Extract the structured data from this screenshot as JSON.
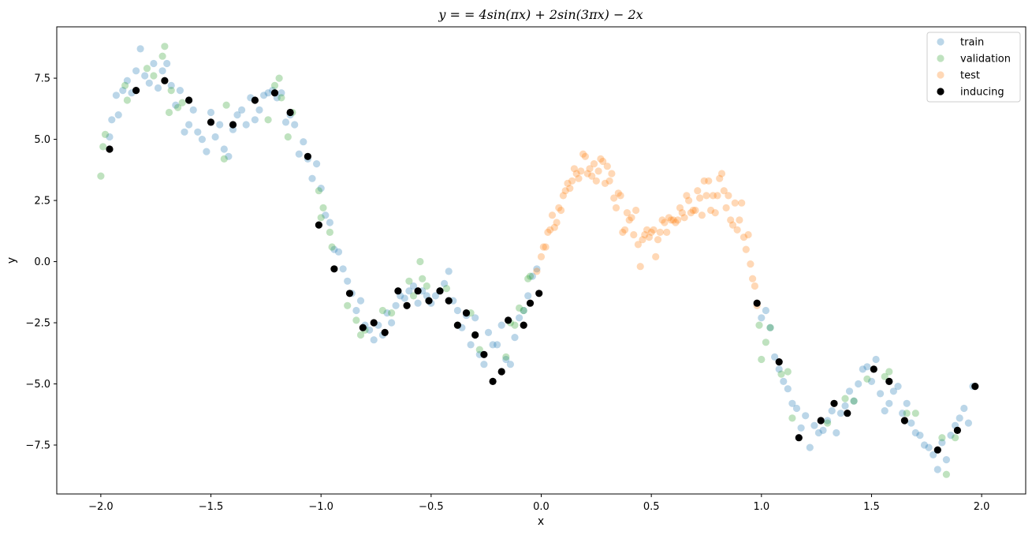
{
  "chart_data": {
    "type": "scatter",
    "title": "y = = 4sin(πx) + 2sin(3πx) − 2x",
    "xlabel": "x",
    "ylabel": "y",
    "xlim": [
      -2.2,
      2.2
    ],
    "ylim": [
      -9.5,
      9.6
    ],
    "xticks": [
      -2.0,
      -1.5,
      -1.0,
      -0.5,
      0.0,
      0.5,
      1.0,
      1.5,
      2.0
    ],
    "xtick_labels": [
      "−2.0",
      "−1.5",
      "−1.0",
      "−0.5",
      "0.0",
      "0.5",
      "1.0",
      "1.5",
      "2.0"
    ],
    "yticks": [
      -7.5,
      -5.0,
      -2.5,
      0.0,
      2.5,
      5.0,
      7.5
    ],
    "ytick_labels": [
      "−7.5",
      "−5.0",
      "−2.5",
      "0.0",
      "2.5",
      "5.0",
      "7.5"
    ],
    "grid": false,
    "legend_position": "top-right",
    "series": [
      {
        "name": "train",
        "color": "#1f77b4",
        "alpha": 0.3,
        "x": [
          -1.96,
          -1.95,
          -1.93,
          -1.92,
          -1.9,
          -1.88,
          -1.86,
          -1.84,
          -1.82,
          -1.8,
          -1.78,
          -1.76,
          -1.74,
          -1.72,
          -1.7,
          -1.68,
          -1.66,
          -1.64,
          -1.62,
          -1.6,
          -1.58,
          -1.56,
          -1.54,
          -1.52,
          -1.5,
          -1.48,
          -1.46,
          -1.44,
          -1.42,
          -1.4,
          -1.38,
          -1.36,
          -1.34,
          -1.32,
          -1.3,
          -1.28,
          -1.26,
          -1.24,
          -1.22,
          -1.2,
          -1.18,
          -1.16,
          -1.14,
          -1.12,
          -1.1,
          -1.08,
          -1.06,
          -1.04,
          -1.02,
          -1.0,
          -0.98,
          -0.96,
          -0.94,
          -0.92,
          -0.9,
          -0.88,
          -0.86,
          -0.84,
          -0.82,
          -0.8,
          -0.78,
          -0.76,
          -0.74,
          -0.72,
          -0.7,
          -0.68,
          -0.66,
          -0.64,
          -0.62,
          -0.6,
          -0.58,
          -0.56,
          -0.54,
          -0.52,
          -0.5,
          -0.48,
          -0.46,
          -0.44,
          -0.42,
          -0.4,
          -0.38,
          -0.36,
          -0.34,
          -0.32,
          -0.3,
          -0.28,
          -0.26,
          -0.24,
          -0.22,
          -0.2,
          -0.18,
          -0.16,
          -0.14,
          -0.12,
          -0.1,
          -0.08,
          -0.06,
          -0.04,
          -0.02,
          1.0,
          1.02,
          1.04,
          1.06,
          1.08,
          1.1,
          1.12,
          1.14,
          1.16,
          1.18,
          1.2,
          1.22,
          1.24,
          1.26,
          1.28,
          1.3,
          1.32,
          1.34,
          1.36,
          1.38,
          1.4,
          1.42,
          1.44,
          1.46,
          1.48,
          1.5,
          1.52,
          1.54,
          1.56,
          1.58,
          1.6,
          1.62,
          1.64,
          1.66,
          1.68,
          1.7,
          1.72,
          1.74,
          1.76,
          1.78,
          1.8,
          1.82,
          1.84,
          1.86,
          1.88,
          1.9,
          1.92,
          1.94,
          1.96
        ],
        "y": [
          5.1,
          5.8,
          6.8,
          6.0,
          7.0,
          7.4,
          6.9,
          7.8,
          8.7,
          7.6,
          7.3,
          8.1,
          7.1,
          7.8,
          8.1,
          7.2,
          6.4,
          7.0,
          5.3,
          5.6,
          6.2,
          5.3,
          5.0,
          4.5,
          6.1,
          5.1,
          5.6,
          4.6,
          4.3,
          5.4,
          6.0,
          6.2,
          5.6,
          6.7,
          5.8,
          6.2,
          6.8,
          6.9,
          7.0,
          6.7,
          6.9,
          5.7,
          6.0,
          5.6,
          4.4,
          4.9,
          4.2,
          3.4,
          4.0,
          3.0,
          1.9,
          1.6,
          0.5,
          0.4,
          -0.3,
          -0.8,
          -1.3,
          -2.0,
          -1.6,
          -2.6,
          -2.8,
          -3.2,
          -2.6,
          -3.0,
          -2.1,
          -2.5,
          -1.8,
          -1.4,
          -1.5,
          -1.2,
          -1.0,
          -1.7,
          -1.2,
          -1.4,
          -1.7,
          -1.4,
          -1.2,
          -0.9,
          -0.4,
          -1.6,
          -2.0,
          -2.7,
          -2.2,
          -3.4,
          -2.3,
          -3.8,
          -4.2,
          -2.9,
          -3.4,
          -3.4,
          -2.6,
          -4.0,
          -4.2,
          -3.1,
          -2.3,
          -2.0,
          -1.4,
          -0.6,
          -0.3,
          -2.3,
          -2.0,
          -2.7,
          -3.9,
          -4.4,
          -4.9,
          -5.2,
          -5.8,
          -6.0,
          -6.8,
          -6.3,
          -7.6,
          -6.7,
          -7.0,
          -6.9,
          -6.5,
          -6.1,
          -7.0,
          -6.2,
          -5.9,
          -5.3,
          -5.7,
          -5.0,
          -4.4,
          -4.3,
          -4.9,
          -4.0,
          -5.4,
          -6.1,
          -5.8,
          -5.3,
          -5.1,
          -6.2,
          -5.8,
          -6.6,
          -7.0,
          -7.1,
          -7.5,
          -7.6,
          -7.9,
          -8.5,
          -7.4,
          -8.1,
          -7.1,
          -6.7,
          -6.4,
          -6.0,
          -6.6,
          -5.1
        ]
      },
      {
        "name": "validation",
        "color": "#2ca02c",
        "alpha": 0.3,
        "x": [
          -2.0,
          -1.99,
          -1.98,
          -1.89,
          -1.88,
          -1.79,
          -1.76,
          -1.72,
          -1.71,
          -1.69,
          -1.68,
          -1.65,
          -1.63,
          -1.44,
          -1.43,
          -1.24,
          -1.21,
          -1.19,
          -1.18,
          -1.15,
          -1.13,
          -1.01,
          -1.0,
          -0.99,
          -0.96,
          -0.95,
          -0.88,
          -0.84,
          -0.82,
          -0.8,
          -0.72,
          -0.68,
          -0.6,
          -0.58,
          -0.55,
          -0.54,
          -0.52,
          -0.43,
          -0.32,
          -0.3,
          -0.28,
          -0.16,
          -0.14,
          -0.12,
          -0.1,
          -0.08,
          -0.06,
          -0.05,
          0.99,
          1.0,
          1.02,
          1.04,
          1.09,
          1.12,
          1.14,
          1.3,
          1.38,
          1.42,
          1.48,
          1.56,
          1.58,
          1.66,
          1.7,
          1.82,
          1.84,
          1.88
        ],
        "y": [
          3.5,
          4.7,
          5.2,
          7.2,
          6.6,
          7.9,
          7.6,
          8.4,
          8.8,
          6.1,
          7.0,
          6.3,
          6.5,
          4.2,
          6.4,
          5.8,
          7.2,
          7.5,
          6.7,
          5.1,
          6.1,
          2.9,
          1.8,
          2.2,
          1.2,
          0.6,
          -1.8,
          -2.4,
          -3.0,
          -2.8,
          -2.0,
          -2.1,
          -0.8,
          -1.4,
          0.0,
          -0.7,
          -1.0,
          -1.1,
          -2.1,
          -3.0,
          -3.6,
          -3.9,
          -2.5,
          -2.6,
          -1.9,
          -2.0,
          -0.7,
          -0.6,
          -2.6,
          -4.0,
          -3.3,
          -2.7,
          -4.6,
          -4.5,
          -6.4,
          -6.6,
          -5.6,
          -5.7,
          -4.8,
          -4.7,
          -4.5,
          -6.2,
          -6.2,
          -7.2,
          -8.7,
          -7.2
        ]
      },
      {
        "name": "test",
        "color": "#ff7f0e",
        "alpha": 0.3,
        "x": [
          -0.02,
          0.0,
          0.01,
          0.02,
          0.03,
          0.04,
          0.05,
          0.06,
          0.07,
          0.08,
          0.09,
          0.1,
          0.11,
          0.12,
          0.13,
          0.14,
          0.15,
          0.16,
          0.17,
          0.18,
          0.19,
          0.2,
          0.21,
          0.22,
          0.23,
          0.24,
          0.25,
          0.26,
          0.27,
          0.28,
          0.29,
          0.3,
          0.31,
          0.32,
          0.33,
          0.34,
          0.35,
          0.36,
          0.37,
          0.38,
          0.39,
          0.4,
          0.41,
          0.42,
          0.43,
          0.44,
          0.45,
          0.46,
          0.47,
          0.48,
          0.49,
          0.5,
          0.51,
          0.52,
          0.53,
          0.54,
          0.55,
          0.56,
          0.57,
          0.58,
          0.59,
          0.6,
          0.61,
          0.62,
          0.63,
          0.64,
          0.65,
          0.66,
          0.67,
          0.68,
          0.69,
          0.7,
          0.71,
          0.72,
          0.73,
          0.74,
          0.75,
          0.76,
          0.77,
          0.78,
          0.79,
          0.8,
          0.81,
          0.82,
          0.83,
          0.84,
          0.85,
          0.86,
          0.87,
          0.88,
          0.89,
          0.9,
          0.91,
          0.92,
          0.93,
          0.94,
          0.95,
          0.96,
          0.97,
          0.98
        ],
        "y": [
          -0.4,
          0.2,
          0.6,
          0.6,
          1.2,
          1.3,
          1.9,
          1.4,
          1.6,
          2.2,
          2.1,
          2.7,
          2.9,
          3.2,
          3.0,
          3.3,
          3.8,
          3.6,
          3.4,
          3.7,
          4.4,
          4.3,
          3.6,
          3.8,
          3.5,
          4.0,
          3.3,
          3.7,
          4.2,
          4.1,
          3.2,
          3.9,
          3.3,
          3.6,
          2.6,
          2.2,
          2.8,
          2.7,
          1.2,
          1.3,
          2.0,
          1.7,
          1.8,
          1.1,
          2.1,
          0.7,
          -0.2,
          0.9,
          1.1,
          1.3,
          1.0,
          1.2,
          1.3,
          0.2,
          0.9,
          1.2,
          1.7,
          1.6,
          1.2,
          1.8,
          1.7,
          1.7,
          1.6,
          1.7,
          2.2,
          2.0,
          1.8,
          2.7,
          2.5,
          2.0,
          2.1,
          2.1,
          2.9,
          2.6,
          1.9,
          3.3,
          2.7,
          3.3,
          2.1,
          2.7,
          2.0,
          2.7,
          3.4,
          3.6,
          2.9,
          2.2,
          2.7,
          1.7,
          1.5,
          2.4,
          1.3,
          1.7,
          2.4,
          1.0,
          0.5,
          1.1,
          -0.1,
          -0.7,
          -1.0,
          -1.8
        ]
      },
      {
        "name": "inducing",
        "color": "#000000",
        "alpha": 1.0,
        "x": [
          -1.96,
          -1.84,
          -1.71,
          -1.6,
          -1.5,
          -1.4,
          -1.3,
          -1.21,
          -1.14,
          -1.06,
          -1.01,
          -0.94,
          -0.87,
          -0.81,
          -0.76,
          -0.71,
          -0.65,
          -0.61,
          -0.56,
          -0.51,
          -0.46,
          -0.42,
          -0.38,
          -0.34,
          -0.3,
          -0.26,
          -0.22,
          -0.18,
          -0.15,
          -0.08,
          -0.05,
          -0.01,
          0.98,
          1.08,
          1.17,
          1.27,
          1.33,
          1.39,
          1.51,
          1.58,
          1.65,
          1.8,
          1.89,
          1.97
        ],
        "y": [
          4.6,
          7.0,
          7.4,
          6.6,
          5.7,
          5.6,
          6.6,
          6.9,
          6.1,
          4.3,
          1.5,
          -0.3,
          -1.3,
          -2.7,
          -2.5,
          -2.9,
          -1.2,
          -1.8,
          -1.2,
          -1.6,
          -1.2,
          -1.6,
          -2.6,
          -2.1,
          -3.0,
          -3.8,
          -4.9,
          -4.5,
          -2.4,
          -2.6,
          -1.7,
          -1.3,
          -1.7,
          -4.1,
          -7.2,
          -6.5,
          -5.8,
          -6.2,
          -4.4,
          -4.9,
          -6.5,
          -7.7,
          -6.9,
          -5.1
        ]
      }
    ]
  }
}
